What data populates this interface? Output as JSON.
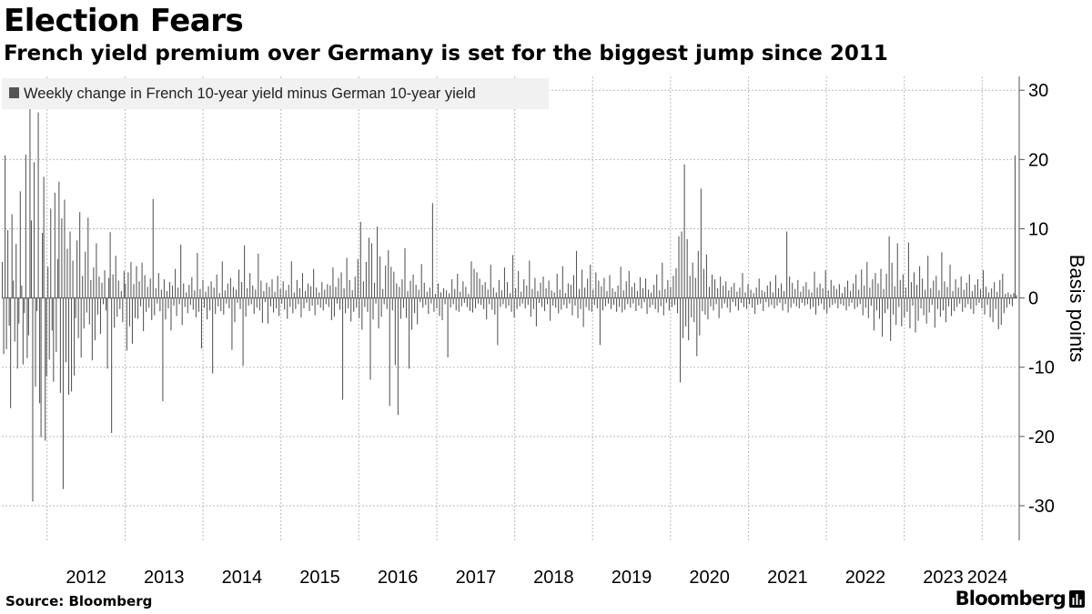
{
  "header": {
    "title": "Election Fears",
    "subtitle": "French yield premium over Germany is set for the biggest jump since 2011"
  },
  "footer": {
    "source": "Source: Bloomberg",
    "brand": "Bloomberg"
  },
  "colors": {
    "bar": "#555555",
    "grid": "#bbbbbb",
    "axis": "#555555",
    "legend_bg": "#f1f1f1"
  },
  "chart_data": {
    "type": "bar",
    "title": "Election Fears",
    "subtitle": "French yield premium over Germany is set for the biggest jump since 2011",
    "legend": [
      "Weekly change in French 10-year yield minus German 10-year yield"
    ],
    "legend_position": "top-left",
    "xlabel": "",
    "ylabel": "Basis points",
    "y_axis_side": "right",
    "ylim": [
      -35,
      32
    ],
    "y_ticks": [
      30,
      20,
      10,
      0,
      -10,
      -20,
      -30
    ],
    "y_tick_labels": [
      "30",
      "20",
      "10",
      "0",
      "-10",
      "-20",
      "-30"
    ],
    "x_tick_labels": [
      "2012",
      "2013",
      "2014",
      "2015",
      "2016",
      "2017",
      "2018",
      "2019",
      "2020",
      "2021",
      "2022",
      "2023",
      "2024"
    ],
    "x_start": "2011-06-03",
    "x_end": "2024-06-14",
    "frequency": "weekly",
    "grid": true,
    "series": [
      {
        "name": "Weekly change in French 10-year yield minus German 10-year yield",
        "values": [
          5.2,
          -8.1,
          20.6,
          -7.4,
          9.8,
          -4.0,
          -15.9,
          12.1,
          2.5,
          -6.3,
          7.8,
          -10.2,
          -3.7,
          15.4,
          1.8,
          -9.6,
          -2.2,
          20.7,
          -8.7,
          -5.4,
          27.3,
          11.2,
          -29.4,
          19.6,
          -12.8,
          -1.9,
          26.8,
          -15.2,
          -20.1,
          9.4,
          17.5,
          -20.6,
          -11.3,
          4.5,
          -8.9,
          12.9,
          -4.7,
          -12.1,
          15.2,
          -7.8,
          5.6,
          16.8,
          -13.7,
          11.5,
          -27.6,
          14.2,
          -9.3,
          7.1,
          -14.0,
          9.6,
          -13.5,
          5.4,
          -11.2,
          -2.9,
          8.3,
          -5.8,
          12.4,
          -8.6,
          3.2,
          -4.4,
          6.7,
          -2.1,
          11.6,
          -3.8,
          2.6,
          -9.0,
          4.4,
          -6.1,
          7.9,
          -2.4,
          3.1,
          -5.2,
          2.2,
          -0.9,
          4.0,
          -1.8,
          -10.2,
          2.9,
          9.5,
          -19.5,
          3.4,
          -4.3,
          6.1,
          -2.7,
          2.5,
          -1.6,
          1.0,
          -3.5,
          3.9,
          2.1,
          -7.6,
          3.7,
          -4.1,
          5.2,
          -6.6,
          2.0,
          -2.9,
          4.6,
          -3.0,
          2.4,
          -1.2,
          5.1,
          -4.8,
          3.3,
          -2.0,
          1.6,
          -1.4,
          2.8,
          -3.2,
          14.3,
          -2.5,
          1.4,
          -0.8,
          3.6,
          -1.9,
          1.2,
          -14.9,
          2.7,
          -3.1,
          1.0,
          -1.5,
          2.3,
          -4.7,
          1.8,
          -1.1,
          4.2,
          -2.6,
          1.5,
          -0.9,
          7.7,
          -3.9,
          2.1,
          -1.3,
          0.8,
          -2.2,
          1.9,
          -1.0,
          3.0,
          -1.7,
          1.1,
          -2.8,
          6.5,
          -2.0,
          1.3,
          -7.3,
          2.6,
          -1.4,
          0.9,
          -3.1,
          1.7,
          -1.8,
          2.4,
          -10.9,
          1.5,
          -2.3,
          3.4,
          -1.2,
          0.7,
          -1.9,
          5.3,
          -2.4,
          1.1,
          -0.8,
          2.1,
          -1.5,
          2.9,
          -7.5,
          1.6,
          -3.5,
          1.2,
          -0.7,
          4.1,
          -1.6,
          2.3,
          -9.8,
          7.6,
          -2.7,
          1.4,
          -1.1,
          3.6,
          -0.9,
          1.8,
          -2.3,
          1.2,
          -1.4,
          6.4,
          -1.8,
          2.5,
          -3.6,
          1.0,
          -0.6,
          2.2,
          -3.7,
          1.6,
          -1.2,
          2.7,
          -2.1,
          0.9,
          -1.5,
          3.2,
          -2.6,
          1.3,
          -0.8,
          2.4,
          -1.7,
          1.1,
          -3.0,
          1.9,
          -1.3,
          5.3,
          -2.2,
          0.8,
          -1.6,
          2.6,
          -0.9,
          1.4,
          -2.8,
          3.6,
          -1.5,
          1.0,
          -0.7,
          2.1,
          -1.9,
          1.7,
          -1.1,
          4.2,
          -2.5,
          1.5,
          -1.0,
          0.8,
          -1.4,
          2.3,
          -1.8,
          1.2,
          -0.9,
          2.0,
          -1.3,
          1.8,
          -3.2,
          4.4,
          -2.7,
          1.6,
          -0.8,
          2.9,
          -1.7,
          3.7,
          -14.7,
          1.4,
          -2.2,
          5.8,
          -1.5,
          2.6,
          -3.4,
          1.1,
          -2.0,
          3.1,
          -1.4,
          5.6,
          -2.9,
          11.0,
          -4.6,
          2.4,
          -1.3,
          5.2,
          -2.0,
          8.7,
          -11.8,
          7.9,
          -3.1,
          2.2,
          -0.8,
          10.3,
          -4.4,
          6.0,
          -2.7,
          1.3,
          -0.9,
          4.7,
          -1.6,
          6.9,
          -15.6,
          4.5,
          -1.8,
          3.8,
          -9.7,
          2.1,
          -16.9,
          1.6,
          -3.0,
          2.7,
          -1.4,
          7.2,
          -2.9,
          1.0,
          -10.2,
          2.5,
          -4.6,
          3.4,
          -2.2,
          1.9,
          -3.8,
          1.2,
          -0.6,
          4.9,
          -1.4,
          2.2,
          -1.0,
          0.9,
          -2.3,
          1.5,
          -0.8,
          13.7,
          -2.0,
          0.6,
          -1.5,
          2.1,
          -2.6,
          0.8,
          -3.2,
          1.4,
          -0.9,
          1.1,
          -8.6,
          0.7,
          -1.4,
          2.7,
          -0.9,
          1.3,
          -1.8,
          3.5,
          -2.0,
          0.9,
          -1.2,
          2.4,
          -0.7,
          1.6,
          -1.3,
          0.6,
          -1.9,
          5.3,
          -2.1,
          4.2,
          -1.5,
          3.7,
          -0.8,
          2.8,
          -1.0,
          1.9,
          -1.6,
          2.3,
          -3.1,
          1.2,
          -0.9,
          4.8,
          -1.7,
          1.5,
          -2.4,
          0.8,
          -6.8,
          2.6,
          -1.3,
          1.1,
          -0.9,
          4.4,
          -1.5,
          2.3,
          -1.1,
          0.7,
          -2.0,
          6.2,
          -2.8,
          1.4,
          -1.6,
          3.9,
          -1.2,
          0.9,
          -0.8,
          2.7,
          -1.5,
          1.8,
          -1.0,
          5.4,
          -2.7,
          1.3,
          -1.6,
          2.9,
          -4.1,
          1.0,
          -0.7,
          2.2,
          -1.3,
          3.1,
          -1.9,
          1.4,
          -0.9,
          2.5,
          -3.3,
          1.1,
          -1.1,
          0.8,
          -1.4,
          3.5,
          -2.2,
          1.2,
          -1.7,
          4.6,
          -1.0,
          0.7,
          -1.5,
          2.1,
          -0.8,
          1.9,
          -2.5,
          3.3,
          -1.1,
          6.8,
          -2.9,
          1.3,
          -1.6,
          4.1,
          -4.2,
          1.5,
          -1.3,
          2.8,
          -1.8,
          4.8,
          -2.0,
          1.2,
          -1.0,
          3.7,
          -1.5,
          2.5,
          -6.8,
          1.7,
          -1.8,
          2.9,
          -1.2,
          1.0,
          -0.8,
          3.3,
          -1.6,
          1.4,
          -1.0,
          0.9,
          -2.0,
          1.8,
          -1.3,
          4.5,
          -2.1,
          1.1,
          -1.7,
          2.4,
          -0.9,
          3.9,
          -1.4,
          1.6,
          -0.8,
          2.2,
          -1.9,
          1.0,
          -1.1,
          3.0,
          -1.5,
          1.4,
          -0.6,
          2.8,
          -2.3,
          1.2,
          -1.4,
          0.8,
          -1.0,
          1.9,
          -1.6,
          3.4,
          -2.1,
          1.1,
          -1.2,
          5.1,
          -2.5,
          1.3,
          -0.7,
          2.6,
          -1.8,
          1.6,
          -1.3,
          3.2,
          -1.0,
          4.3,
          -2.2,
          8.9,
          -12.2,
          9.6,
          -5.8,
          19.3,
          -4.1,
          8.5,
          -6.1,
          3.2,
          -2.8,
          5.1,
          -3.5,
          2.9,
          -8.4,
          6.8,
          -5.4,
          15.8,
          -1.9,
          4.2,
          -2.4,
          6.3,
          -3.1,
          1.6,
          -1.2,
          3.4,
          -1.8,
          2.7,
          -0.9,
          1.4,
          -2.9,
          3.1,
          -1.5,
          1.8,
          -0.8,
          2.4,
          -1.4,
          1.1,
          -2.1,
          1.6,
          -0.6,
          2.2,
          -1.2,
          0.9,
          -1.8,
          1.5,
          -0.7,
          3.6,
          -1.3,
          0.8,
          -1.6,
          2.0,
          -0.9,
          1.2,
          -1.4,
          0.7,
          -2.3,
          1.5,
          -1.0,
          2.8,
          -0.8,
          1.1,
          -1.9,
          0.9,
          -0.6,
          1.8,
          -1.3,
          2.4,
          -1.0,
          0.8,
          -1.5,
          3.3,
          -1.1,
          1.4,
          -0.7,
          2.1,
          -1.8,
          1.0,
          -0.9,
          9.6,
          -2.1,
          3.1,
          -1.4,
          2.2,
          -0.8,
          1.3,
          -1.2,
          2.6,
          -1.5,
          0.9,
          -0.7,
          1.7,
          -1.1,
          2.3,
          -0.9,
          1.2,
          -1.6,
          0.8,
          -1.3,
          3.8,
          -2.4,
          1.5,
          -1.1,
          2.1,
          -0.8,
          1.4,
          -1.7,
          4.0,
          -2.2,
          1.1,
          -1.4,
          2.6,
          -1.0,
          1.8,
          -0.8,
          1.3,
          -1.5,
          2.0,
          -0.9,
          0.7,
          -1.1,
          1.6,
          -1.8,
          2.5,
          -1.2,
          1.0,
          -0.7,
          2.1,
          -1.6,
          3.4,
          -1.3,
          1.2,
          -0.9,
          4.1,
          -2.5,
          1.8,
          -1.4,
          5.2,
          -2.9,
          1.5,
          -1.1,
          2.7,
          -4.7,
          3.6,
          -1.8,
          2.1,
          -3.0,
          4.2,
          -5.6,
          1.3,
          -2.2,
          3.5,
          -1.6,
          8.9,
          -6.2,
          5.1,
          -2.4,
          1.7,
          -3.9,
          7.9,
          -1.3,
          2.6,
          -4.1,
          3.4,
          -2.8,
          1.5,
          -2.0,
          8.0,
          -4.4,
          2.3,
          -1.1,
          3.7,
          -5.0,
          1.9,
          -3.3,
          4.6,
          -1.5,
          2.8,
          -2.5,
          1.2,
          -3.7,
          6.1,
          -2.1,
          1.4,
          -1.0,
          2.5,
          -4.3,
          3.2,
          -1.6,
          1.1,
          -2.7,
          6.6,
          -1.8,
          2.4,
          -3.5,
          1.6,
          -1.2,
          4.8,
          -2.6,
          1.0,
          -1.9,
          2.7,
          -1.3,
          1.5,
          -0.8,
          3.1,
          -2.0,
          1.2,
          -1.4,
          2.2,
          -0.9,
          3.4,
          -1.6,
          1.0,
          -2.3,
          1.9,
          -1.1,
          2.7,
          -0.7,
          1.3,
          -1.5,
          4.0,
          -2.4,
          1.6,
          -1.0,
          0.8,
          -2.8,
          1.4,
          -3.5,
          2.3,
          -1.6,
          0.9,
          -4.5,
          2.6,
          -3.9,
          3.5,
          -2.2,
          0.6,
          -1.4,
          0.8,
          -0.9,
          0.5,
          -1.2,
          0.7,
          20.6,
          0.4
        ]
      }
    ]
  }
}
